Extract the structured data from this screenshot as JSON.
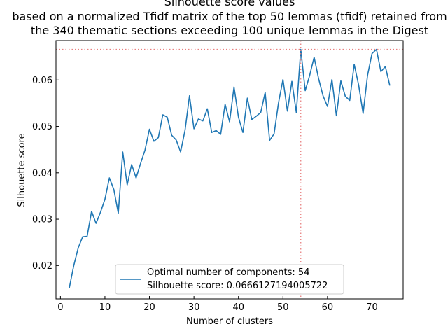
{
  "chart_data": {
    "type": "line",
    "title_lines": [
      "Silhouette score values",
      "based on a normalized Tfidf matrix of the top 50 lemmas (tfidf) retained from",
      "the 340 thematic sections exceeding 100 unique lemmas in the Digest"
    ],
    "xlabel": "Number of clusters",
    "ylabel": "Silhouette score",
    "xlim": [
      -1,
      77
    ],
    "ylim": [
      0.0128,
      0.0685
    ],
    "xticks": [
      0,
      10,
      20,
      30,
      40,
      50,
      60,
      70
    ],
    "yticks": [
      0.02,
      0.03,
      0.04,
      0.05,
      0.06
    ],
    "ytick_labels": [
      "0.02",
      "0.03",
      "0.04",
      "0.05",
      "0.06"
    ],
    "grid": false,
    "legend_position": "lower center",
    "series": [
      {
        "color": "#1f77b4",
        "x": [
          2,
          3,
          4,
          5,
          6,
          7,
          8,
          9,
          10,
          11,
          12,
          13,
          14,
          15,
          16,
          17,
          18,
          19,
          20,
          21,
          22,
          23,
          24,
          25,
          26,
          27,
          28,
          29,
          30,
          31,
          32,
          33,
          34,
          35,
          36,
          37,
          38,
          39,
          40,
          41,
          42,
          43,
          44,
          45,
          46,
          47,
          48,
          49,
          50,
          51,
          52,
          53,
          54,
          55,
          56,
          57,
          58,
          59,
          60,
          61,
          62,
          63,
          64,
          65,
          66,
          67,
          68,
          69,
          70,
          71,
          72,
          73,
          74
        ],
        "y": [
          0.0152,
          0.02,
          0.0238,
          0.0262,
          0.0263,
          0.0317,
          0.0291,
          0.0315,
          0.0343,
          0.0389,
          0.0364,
          0.0313,
          0.0445,
          0.0374,
          0.0418,
          0.0389,
          0.042,
          0.0449,
          0.0494,
          0.0468,
          0.0476,
          0.0525,
          0.052,
          0.0481,
          0.0471,
          0.0445,
          0.0492,
          0.0566,
          0.0495,
          0.0516,
          0.0512,
          0.0538,
          0.0487,
          0.0491,
          0.0483,
          0.0548,
          0.051,
          0.0585,
          0.052,
          0.0487,
          0.0561,
          0.0515,
          0.0522,
          0.053,
          0.0573,
          0.047,
          0.0484,
          0.0551,
          0.0601,
          0.0533,
          0.0597,
          0.053,
          0.0666,
          0.0577,
          0.061,
          0.0649,
          0.0603,
          0.0566,
          0.0543,
          0.0601,
          0.0523,
          0.0598,
          0.0565,
          0.0556,
          0.0634,
          0.0589,
          0.0528,
          0.061,
          0.0657,
          0.0666,
          0.0618,
          0.0629,
          0.0588
        ]
      }
    ],
    "reference_lines": {
      "color": "#e88080",
      "vertical_x": 54,
      "horizontal_y": 0.0666127194005722
    },
    "legend": {
      "line1": "Optimal number of components: 54",
      "line2": "Silhouette score: 0.0666127194005722"
    }
  }
}
